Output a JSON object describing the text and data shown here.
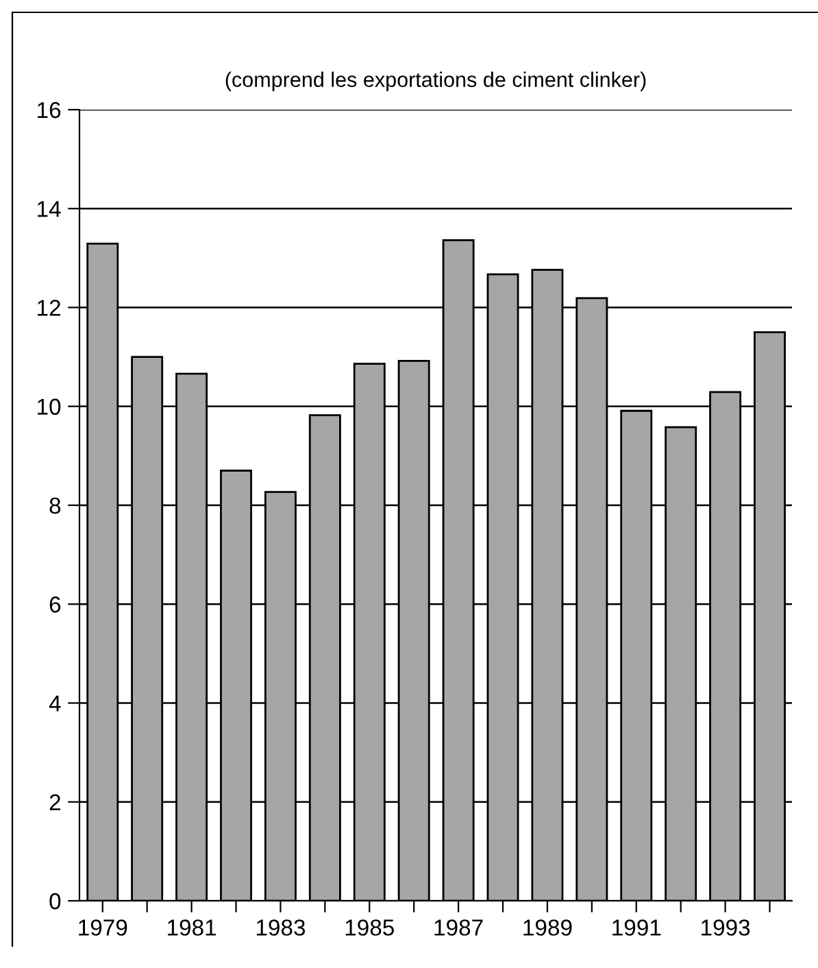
{
  "chart_data": {
    "type": "bar",
    "title": "(comprend les exportations de ciment clinker)",
    "categories": [
      "1979",
      null,
      "1981",
      null,
      "1983",
      null,
      "1985",
      null,
      "1987",
      null,
      "1989",
      null,
      "1991",
      null,
      "1993",
      null
    ],
    "values": [
      13.29,
      11.0,
      10.66,
      8.7,
      8.27,
      9.82,
      10.86,
      10.92,
      13.36,
      12.67,
      12.76,
      12.19,
      9.91,
      9.58,
      10.29,
      11.5
    ],
    "color": "#a6a6a6",
    "ylim": [
      0,
      16
    ],
    "yticks": [
      0,
      2,
      4,
      6,
      8,
      10,
      12,
      14,
      16
    ],
    "grid": "y"
  }
}
